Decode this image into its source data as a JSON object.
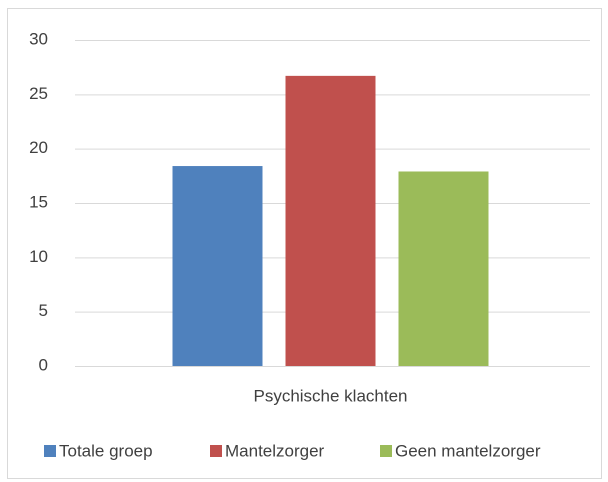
{
  "chart_data": {
    "type": "bar",
    "categories": [
      "Psychische klachten"
    ],
    "series": [
      {
        "name": "Totale groep",
        "color": "#4f81bd",
        "values": [
          18.4
        ]
      },
      {
        "name": "Mantelzorger",
        "color": "#c0504d",
        "values": [
          26.7
        ]
      },
      {
        "name": "Geen mantelzorger",
        "color": "#9bbb59",
        "values": [
          17.9
        ]
      }
    ],
    "ylim": [
      0,
      30
    ],
    "yticks": [
      0,
      5,
      10,
      15,
      20,
      25,
      30
    ],
    "grid": true,
    "legend": "bottom"
  }
}
